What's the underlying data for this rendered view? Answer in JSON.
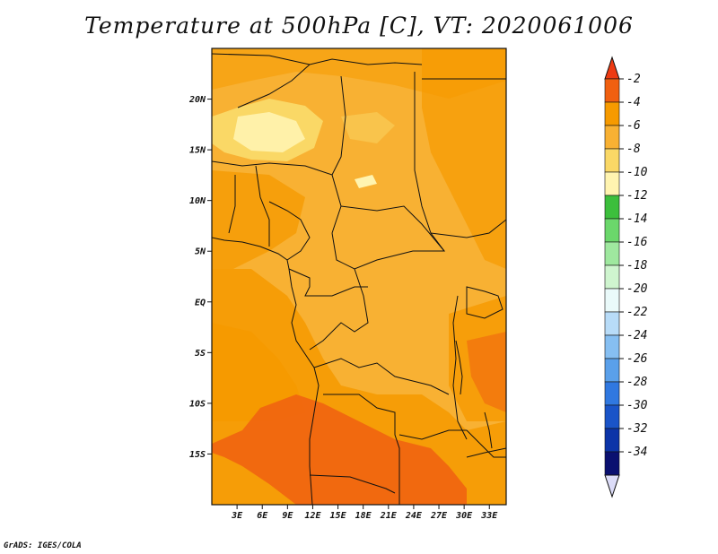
{
  "title": "Temperature at 500hPa [C], VT: 2020061006",
  "credit": "GrADS: IGES/COLA",
  "map": {
    "lon_range": [
      0,
      35
    ],
    "lat_range": [
      -20,
      25
    ],
    "lat_ticks": [
      {
        "lat": 20,
        "label": "20N"
      },
      {
        "lat": 15,
        "label": "15N"
      },
      {
        "lat": 10,
        "label": "10N"
      },
      {
        "lat": 5,
        "label": "5N"
      },
      {
        "lat": 0,
        "label": "EQ"
      },
      {
        "lat": -5,
        "label": "5S"
      },
      {
        "lat": -10,
        "label": "10S"
      },
      {
        "lat": -15,
        "label": "15S"
      }
    ],
    "lon_ticks": [
      {
        "lon": 3,
        "label": "3E"
      },
      {
        "lon": 6,
        "label": "6E"
      },
      {
        "lon": 9,
        "label": "9E"
      },
      {
        "lon": 12,
        "label": "12E"
      },
      {
        "lon": 15,
        "label": "15E"
      },
      {
        "lon": 18,
        "label": "18E"
      },
      {
        "lon": 21,
        "label": "21E"
      },
      {
        "lon": 24,
        "label": "24E"
      },
      {
        "lon": 27,
        "label": "27E"
      },
      {
        "lon": 30,
        "label": "30E"
      },
      {
        "lon": 33,
        "label": "33E"
      }
    ]
  },
  "colorbar": {
    "top_arrow_color": "#ee3a12",
    "bottom_arrow_color": "#dcdcf8",
    "bins": [
      {
        "label": "-2",
        "color": "#f06010"
      },
      {
        "label": "-4",
        "color": "#f69a00"
      },
      {
        "label": "-6",
        "color": "#f8b133"
      },
      {
        "label": "-8",
        "color": "#fad866"
      },
      {
        "label": "-10",
        "color": "#fff4b0"
      },
      {
        "label": "-12",
        "color": "#3cbf3c"
      },
      {
        "label": "-14",
        "color": "#6bd76b"
      },
      {
        "label": "-16",
        "color": "#9fe89f"
      },
      {
        "label": "-18",
        "color": "#cff5cf"
      },
      {
        "label": "-20",
        "color": "#eafafa"
      },
      {
        "label": "-22",
        "color": "#b8dcf8"
      },
      {
        "label": "-24",
        "color": "#86bff2"
      },
      {
        "label": "-26",
        "color": "#5aa0ea"
      },
      {
        "label": "-28",
        "color": "#3078e0"
      },
      {
        "label": "-30",
        "color": "#1a54c8"
      },
      {
        "label": "-32",
        "color": "#0c34a8"
      },
      {
        "label": "-34",
        "color": "#0a1070"
      }
    ]
  }
}
